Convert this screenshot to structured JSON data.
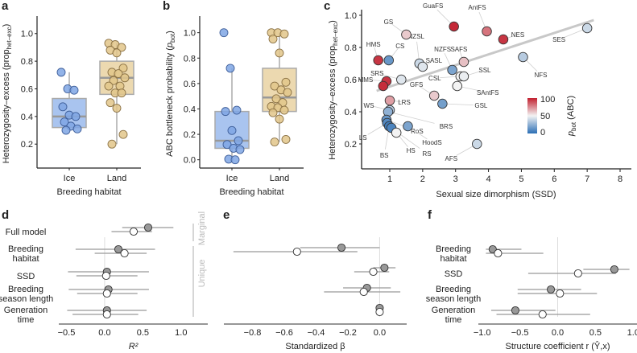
{
  "chart_data": [
    {
      "panel": "a",
      "type": "box",
      "title": "",
      "xlabel": "Breeding habitat",
      "ylabel": "Heterozygosity–excess (prop_het–exc)",
      "ylim": [
        0.05,
        1.08
      ],
      "yticks": [
        "0.2",
        "0.4",
        "0.6",
        "0.8",
        "1.0"
      ],
      "categories": [
        "Ice",
        "Land"
      ],
      "colors": {
        "Ice": "#7ea6e6",
        "Land": "#e0c48a"
      },
      "box_stats": [
        {
          "category": "Ice",
          "q1": 0.32,
          "median": 0.4,
          "q3": 0.53,
          "whisker_low": 0.3,
          "whisker_high": 0.72
        },
        {
          "category": "Land",
          "q1": 0.56,
          "median": 0.68,
          "q3": 0.8,
          "whisker_low": 0.2,
          "whisker_high": 0.93
        }
      ],
      "points": {
        "Ice": [
          0.72,
          0.6,
          0.59,
          0.47,
          0.41,
          0.4,
          0.36,
          0.33,
          0.31,
          0.3
        ],
        "Land": [
          0.93,
          0.92,
          0.9,
          0.88,
          0.86,
          0.75,
          0.72,
          0.71,
          0.68,
          0.66,
          0.62,
          0.62,
          0.57,
          0.57,
          0.5,
          0.46,
          0.27,
          0.2
        ]
      }
    },
    {
      "panel": "b",
      "type": "box",
      "title": "",
      "xlabel": "Breeding habitat",
      "ylabel": "ABC bottleneck probability (p_bot)",
      "ylim": [
        -0.04,
        1.08
      ],
      "yticks": [
        "0.0",
        "0.2",
        "0.4",
        "0.6",
        "0.8",
        "1.0"
      ],
      "categories": [
        "Ice",
        "Land"
      ],
      "box_stats": [
        {
          "category": "Ice",
          "q1": 0.09,
          "median": 0.15,
          "q3": 0.38,
          "whisker_low": 0.0,
          "whisker_high": 0.72
        },
        {
          "category": "Land",
          "q1": 0.38,
          "median": 0.49,
          "q3": 0.72,
          "whisker_low": 0.14,
          "whisker_high": 1.0
        }
      ],
      "points": {
        "Ice": [
          1.0,
          0.72,
          0.39,
          0.38,
          0.23,
          0.15,
          0.12,
          0.09,
          0.08,
          0.005,
          0.0
        ],
        "Land": [
          1.0,
          1.0,
          0.99,
          0.95,
          0.84,
          0.61,
          0.58,
          0.55,
          0.53,
          0.48,
          0.45,
          0.42,
          0.41,
          0.39,
          0.37,
          0.32,
          0.16,
          0.14
        ]
      }
    },
    {
      "panel": "c",
      "type": "scatter",
      "title": "",
      "xlabel": "Sexual size dimorphism (SSD)",
      "ylabel": "Heterozygosity–excess (prop_het–exc)",
      "xlim": [
        0.2,
        8.2
      ],
      "ylim": [
        0.07,
        1.04
      ],
      "xticks": [
        "1",
        "2",
        "3",
        "4",
        "5",
        "6",
        "7",
        "8"
      ],
      "yticks": [
        "0.2",
        "0.4",
        "0.6",
        "0.8",
        "1.0"
      ],
      "regression_line": {
        "x": [
          0.6,
          7.2
        ],
        "y": [
          0.53,
          0.97
        ]
      },
      "colorbar": {
        "label": "p_bot (ABC)",
        "ticks": [
          "0",
          "50",
          "100"
        ],
        "low": "#2c6fb5",
        "mid": "#f3f3f3",
        "high": "#c2202f"
      },
      "points": [
        {
          "label": "GS",
          "x": 1.5,
          "y": 0.88,
          "pbot": 60
        },
        {
          "label": "GuaFS",
          "x": 2.95,
          "y": 0.93,
          "pbot": 98
        },
        {
          "label": "AntFS",
          "x": 3.95,
          "y": 0.9,
          "pbot": 80
        },
        {
          "label": "NES",
          "x": 4.45,
          "y": 0.85,
          "pbot": 95
        },
        {
          "label": "SES",
          "x": 7.0,
          "y": 0.92,
          "pbot": 40
        },
        {
          "label": "NZSL",
          "x": 1.9,
          "y": 0.7,
          "pbot": 40
        },
        {
          "label": "SASL",
          "x": 2.0,
          "y": 0.68,
          "pbot": 45
        },
        {
          "label": "HMS",
          "x": 0.65,
          "y": 0.72,
          "pbot": 95
        },
        {
          "label": "CS",
          "x": 0.97,
          "y": 0.72,
          "pbot": 15
        },
        {
          "label": "NZFS",
          "x": 2.9,
          "y": 0.66,
          "pbot": 20
        },
        {
          "label": "SAFS",
          "x": 3.25,
          "y": 0.71,
          "pbot": 62
        },
        {
          "label": "NFS",
          "x": 5.05,
          "y": 0.74,
          "pbot": 35
        },
        {
          "label": "SRS",
          "x": 1.35,
          "y": 0.6,
          "pbot": 45
        },
        {
          "label": "MMS",
          "x": 0.9,
          "y": 0.59,
          "pbot": 95
        },
        {
          "label": "MMS",
          "x": 0.8,
          "y": 0.56,
          "pbot": 97
        },
        {
          "label": "CSL",
          "x": 3.15,
          "y": 0.62,
          "pbot": 50
        },
        {
          "label": "SSL",
          "x": 3.25,
          "y": 0.62,
          "pbot": 48
        },
        {
          "label": "SAntFS",
          "x": 3.05,
          "y": 0.56,
          "pbot": 50
        },
        {
          "label": "GFS",
          "x": 2.35,
          "y": 0.5,
          "pbot": 60
        },
        {
          "label": "GSL",
          "x": 2.6,
          "y": 0.45,
          "pbot": 18
        },
        {
          "label": "LRS",
          "x": 1.0,
          "y": 0.47,
          "pbot": 70
        },
        {
          "label": "WS",
          "x": 1.0,
          "y": 0.41,
          "pbot": 35
        },
        {
          "label": "BRS",
          "x": 0.95,
          "y": 0.4,
          "pbot": 25
        },
        {
          "label": "RoS",
          "x": 0.9,
          "y": 0.35,
          "pbot": 15
        },
        {
          "label": "LS",
          "x": 0.92,
          "y": 0.33,
          "pbot": 10
        },
        {
          "label": "BS",
          "x": 0.98,
          "y": 0.31,
          "pbot": 5
        },
        {
          "label": "RS",
          "x": 1.05,
          "y": 0.3,
          "pbot": 8
        },
        {
          "label": "HoodS",
          "x": 1.55,
          "y": 0.31,
          "pbot": 20
        },
        {
          "label": "HS",
          "x": 1.2,
          "y": 0.27,
          "pbot": 50
        },
        {
          "label": "AFS",
          "x": 3.65,
          "y": 0.2,
          "pbot": 40
        }
      ]
    },
    {
      "panel": "d",
      "type": "forest",
      "xlabel": "R²",
      "xlim": [
        -0.6,
        1.35
      ],
      "xticks": [
        "−0.5",
        "0.0",
        "0.5",
        "1.0"
      ],
      "rows": [
        "Full model",
        "Breeding habitat",
        "SSD",
        "Breeding season length",
        "Generation time"
      ],
      "side_labels": [
        "Marginal",
        "Unique"
      ],
      "series": [
        {
          "name": "filled",
          "color": "#999999",
          "est": [
            0.57,
            0.18,
            0.03,
            0.05,
            0.03
          ],
          "lo": [
            0.23,
            -0.38,
            -0.48,
            -0.47,
            -0.49
          ],
          "hi": [
            0.9,
            0.66,
            0.58,
            0.58,
            0.55
          ]
        },
        {
          "name": "open",
          "color": "#ffffff",
          "est": [
            0.38,
            0.26,
            0.02,
            0.03,
            0.03
          ],
          "lo": [
            0.09,
            -0.13,
            -0.37,
            -0.36,
            -0.42
          ],
          "hi": [
            0.62,
            0.55,
            0.43,
            0.43,
            0.44
          ]
        }
      ]
    },
    {
      "panel": "e",
      "type": "forest",
      "xlabel": "Standardized β",
      "xlim": [
        -0.98,
        0.17
      ],
      "xticks": [
        "−0.8",
        "−0.6",
        "−0.4",
        "−0.2",
        "0.0"
      ],
      "rows": [
        "Breeding habitat",
        "SSD",
        "Breeding season length",
        "Generation time"
      ],
      "series": [
        {
          "name": "filled",
          "color": "#999999",
          "est": [
            -0.24,
            0.03,
            -0.08,
            0.0
          ],
          "lo": [
            -0.5,
            -0.04,
            -0.23,
            0.0
          ],
          "hi": [
            0.0,
            0.1,
            0.07,
            0.0
          ]
        },
        {
          "name": "open",
          "color": "#ffffff",
          "est": [
            -0.52,
            -0.04,
            -0.1,
            0.0
          ],
          "lo": [
            -0.92,
            -0.16,
            -0.35,
            0.0
          ],
          "hi": [
            -0.14,
            0.06,
            0.13,
            0.0
          ]
        }
      ]
    },
    {
      "panel": "f",
      "type": "forest",
      "xlabel": "Structure coefficient r (Ŷ,x)",
      "xlim": [
        -1.05,
        1.05
      ],
      "xticks": [
        "−1.0",
        "−0.5",
        "0.0",
        "0.5",
        "1.0"
      ],
      "rows": [
        "Breeding habitat",
        "SSD",
        "Breeding season length",
        "Generation time"
      ],
      "series": [
        {
          "name": "filled",
          "color": "#999999",
          "est": [
            -0.86,
            0.75,
            -0.09,
            -0.56
          ],
          "lo": [
            -0.95,
            0.34,
            -0.53,
            -0.88
          ],
          "hi": [
            -0.48,
            0.95,
            0.31,
            -0.03
          ]
        },
        {
          "name": "open",
          "color": "#ffffff",
          "est": [
            -0.79,
            0.27,
            0.03,
            -0.2
          ],
          "lo": [
            -0.95,
            -0.39,
            -0.53,
            -0.81
          ],
          "hi": [
            -0.19,
            0.77,
            0.52,
            0.43
          ]
        }
      ]
    }
  ]
}
